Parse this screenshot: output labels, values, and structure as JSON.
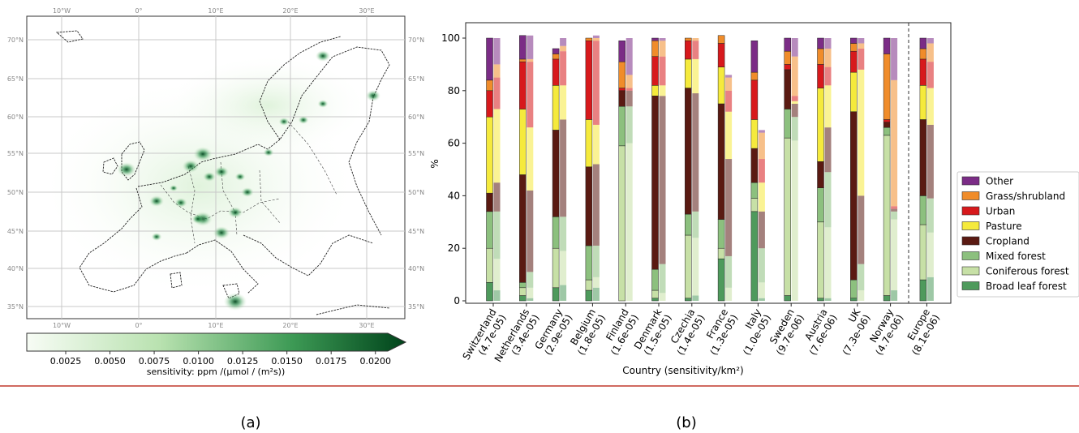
{
  "map": {
    "lon_ticks": [
      "10°W",
      "0°",
      "10°E",
      "20°E",
      "30°E"
    ],
    "lat_ticks": [
      "70°N",
      "65°N",
      "60°N",
      "55°N",
      "50°N",
      "45°N",
      "40°N",
      "35°N"
    ],
    "colorbar": {
      "ticks": [
        "0.0025",
        "0.0050",
        "0.0075",
        "0.0100",
        "0.0125",
        "0.0150",
        "0.0175",
        "0.0200"
      ],
      "label": "sensitivity: ppm /(μmol / (m²s))",
      "color_low": "#f7fcf5",
      "color_high": "#00441b"
    }
  },
  "chart_data": {
    "type": "bar",
    "ylabel": "%",
    "xlabel": "Country (sensitivity/km²)",
    "ylim": [
      0,
      100
    ],
    "yticks": [
      "0",
      "20",
      "40",
      "60",
      "80",
      "100"
    ],
    "categories": [
      {
        "name": "Switzerland",
        "sens": "(4.7e-05)"
      },
      {
        "name": "Netherlands",
        "sens": "(3.4e-05)"
      },
      {
        "name": "Germany",
        "sens": "(2.9e-05)"
      },
      {
        "name": "Belgium",
        "sens": "(1.8e-05)"
      },
      {
        "name": "Finland",
        "sens": "(1.6e-05)"
      },
      {
        "name": "Denmark",
        "sens": "(1.5e-05)"
      },
      {
        "name": "Czechia",
        "sens": "(1.4e-05)"
      },
      {
        "name": "France",
        "sens": "(1.3e-05)"
      },
      {
        "name": "Italy",
        "sens": "(1.0e-05)"
      },
      {
        "name": "Sweden",
        "sens": "(9.7e-06)"
      },
      {
        "name": "Austria",
        "sens": "(7.6e-06)"
      },
      {
        "name": "UK",
        "sens": "(7.3e-06)"
      },
      {
        "name": "Norway",
        "sens": "(4.7e-06)"
      },
      {
        "name": "Europe",
        "sens": "(8.1e-06)"
      }
    ],
    "series": [
      {
        "name": "Broad leaf forest",
        "color": "#4e9a5c",
        "a": [
          7,
          2,
          5,
          4,
          0,
          1,
          1,
          16,
          34,
          2,
          1,
          1,
          2,
          8
        ],
        "b": [
          4,
          1,
          6,
          5,
          0,
          0,
          2,
          0,
          1,
          0,
          1,
          0,
          4,
          9
        ]
      },
      {
        "name": "Coniferous forest",
        "color": "#c7e0a6",
        "a": [
          13,
          3,
          15,
          4,
          59,
          3,
          24,
          4,
          5,
          60,
          29,
          0,
          61,
          21
        ],
        "b": [
          12,
          4,
          13,
          4,
          60,
          3,
          22,
          5,
          6,
          61,
          27,
          4,
          27,
          17
        ]
      },
      {
        "name": "Mixed forest",
        "color": "#8cc07e",
        "a": [
          14,
          2,
          12,
          13,
          15,
          8,
          8,
          11,
          6,
          11,
          13,
          7,
          3,
          11
        ],
        "b": [
          18,
          6,
          13,
          12,
          14,
          11,
          10,
          12,
          13,
          9,
          21,
          10,
          3,
          13
        ]
      },
      {
        "name": "Cropland",
        "color": "#5a1a12",
        "a": [
          7,
          41,
          33,
          30,
          6,
          66,
          48,
          44,
          13,
          15,
          10,
          64,
          2,
          29
        ],
        "b": [
          11,
          31,
          37,
          31,
          6,
          64,
          45,
          37,
          14,
          5,
          17,
          26,
          1,
          28
        ]
      },
      {
        "name": "Pasture",
        "color": "#f5ea3c",
        "a": [
          29,
          25,
          17,
          18,
          0,
          4,
          11,
          14,
          11,
          0,
          28,
          15,
          0,
          13
        ],
        "b": [
          28,
          24,
          13,
          15,
          0,
          4,
          13,
          18,
          11,
          1,
          16,
          48,
          0,
          14
        ]
      },
      {
        "name": "Urban",
        "color": "#d7191c",
        "a": [
          10,
          18,
          10,
          30,
          1,
          11,
          7,
          9,
          15,
          2,
          9,
          8,
          1,
          10
        ],
        "b": [
          12,
          25,
          13,
          32,
          1,
          11,
          7,
          8,
          9,
          2,
          7,
          8,
          1,
          10
        ]
      },
      {
        "name": "Grass/shrubland",
        "color": "#f08c2a",
        "a": [
          4,
          1,
          2,
          1,
          10,
          6,
          1,
          3,
          3,
          5,
          6,
          3,
          25,
          4
        ],
        "b": [
          5,
          1,
          2,
          1,
          5,
          6,
          1,
          5,
          10,
          15,
          7,
          2,
          48,
          7
        ]
      },
      {
        "name": "Other",
        "color": "#7b2c86",
        "a": [
          16,
          9,
          2,
          0,
          8,
          1,
          0,
          0,
          12,
          5,
          4,
          2,
          6,
          4
        ],
        "b": [
          10,
          9,
          3,
          1,
          14,
          1,
          0,
          1,
          1,
          7,
          4,
          2,
          16,
          2
        ]
      }
    ],
    "legend_position": "right",
    "separator_before": "Europe"
  },
  "captions": {
    "a": "(a)",
    "b": "(b)"
  }
}
